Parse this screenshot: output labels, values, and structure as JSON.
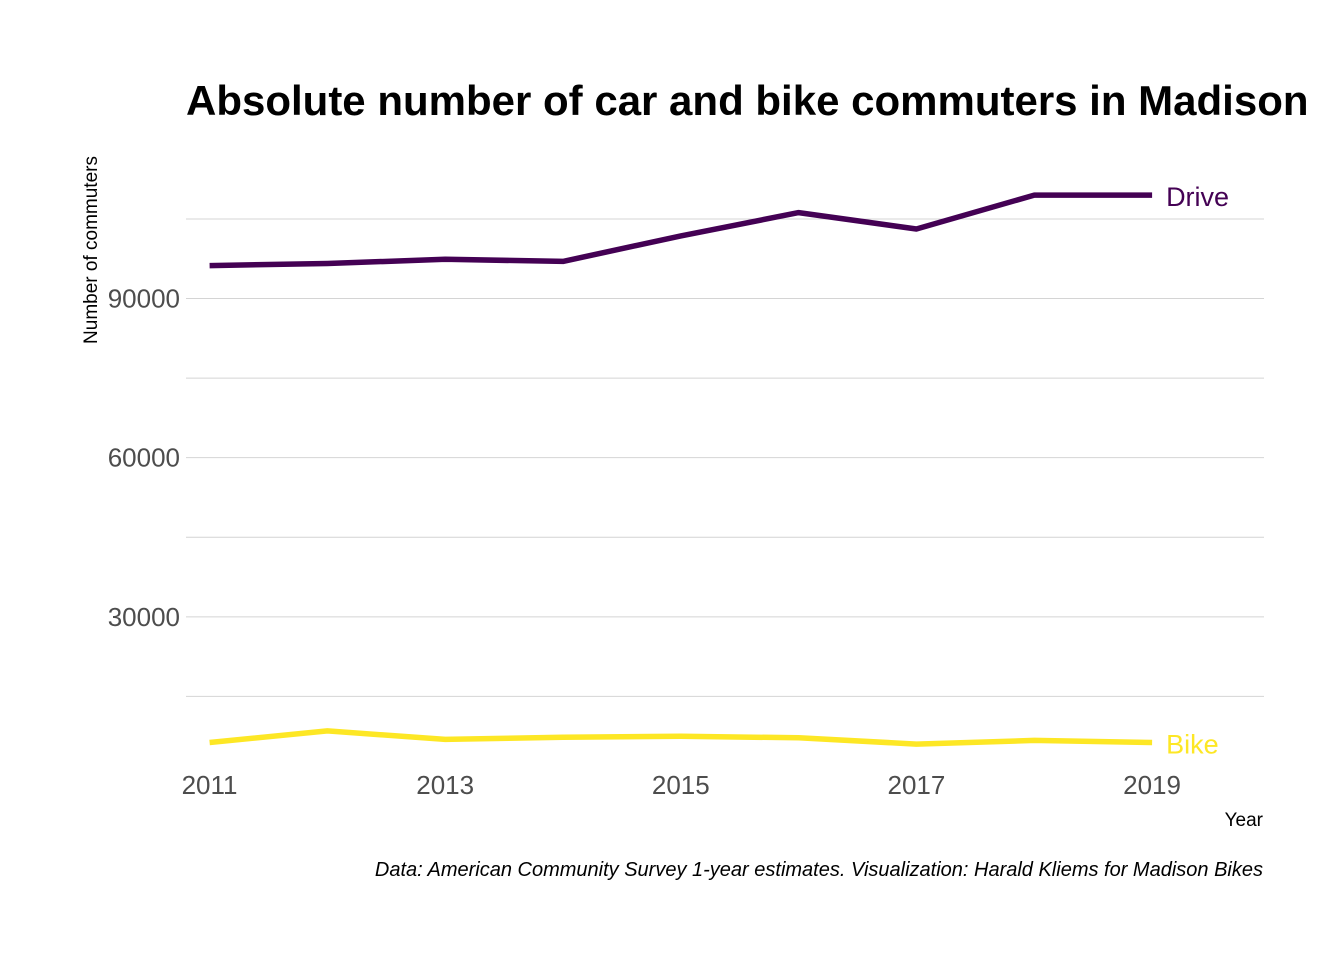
{
  "chart_data": {
    "type": "line",
    "title": "Absolute number of car and bike commuters in Madison",
    "xlabel": "Year",
    "ylabel": "Number of commuters",
    "caption": "Data: American Community Survey 1-year estimates. Visualization: Harald Kliems for Madison Bikes",
    "x": [
      2011,
      2012,
      2013,
      2014,
      2015,
      2016,
      2017,
      2018,
      2019
    ],
    "x_ticks": [
      "2011",
      "2013",
      "2015",
      "2017",
      "2019"
    ],
    "y_ticks": [
      "30000",
      "60000",
      "90000"
    ],
    "xlim": [
      2010.8,
      2019.95
    ],
    "ylim": [
      1500,
      118000
    ],
    "grid": true,
    "legend": "none (direct labels at line ends)",
    "series": [
      {
        "name": "Drive",
        "color": "#440154",
        "values": [
          96200,
          96600,
          97400,
          97000,
          101800,
          106200,
          103100,
          109500,
          109500
        ]
      },
      {
        "name": "Bike",
        "color": "#FDE725",
        "values": [
          6300,
          8500,
          6900,
          7300,
          7500,
          7200,
          6000,
          6700,
          6300
        ]
      }
    ]
  }
}
